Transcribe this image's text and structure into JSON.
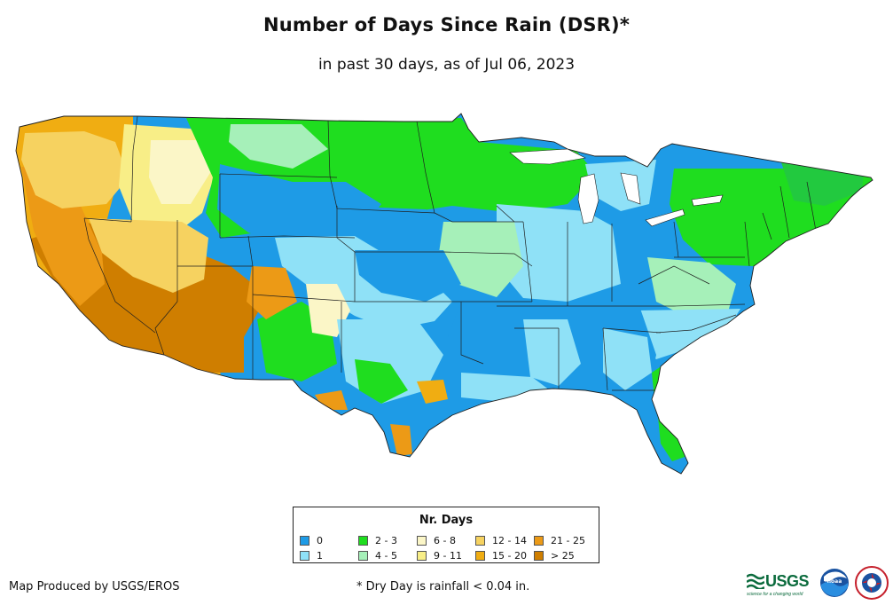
{
  "title": "Number of Days Since Rain (DSR)*",
  "subtitle": "in past 30 days, as of Jul 06, 2023",
  "legend": {
    "title": "Nr. Days",
    "items": [
      {
        "label": "0",
        "color": "#1e9be6"
      },
      {
        "label": "1",
        "color": "#8fe1f7"
      },
      {
        "label": "2 - 3",
        "color": "#1fdd1f"
      },
      {
        "label": "4 - 5",
        "color": "#a6f0b9"
      },
      {
        "label": "6 - 8",
        "color": "#fbf6c7"
      },
      {
        "label": "9 - 11",
        "color": "#f8ee87"
      },
      {
        "label": "12 - 14",
        "color": "#f6d260"
      },
      {
        "label": "15 - 20",
        "color": "#f0ad12"
      },
      {
        "label": "21 - 25",
        "color": "#ec9a16"
      },
      {
        "label": "> 25",
        "color": "#cf7e00"
      }
    ]
  },
  "producer": "Map Produced by USGS/EROS",
  "footnote": "* Dry Day is rainfall < 0.04 in.",
  "logos": {
    "usgs": {
      "word": "USGS",
      "tagline": "science for a changing world"
    },
    "noaa": {
      "icon": "noaa-logo"
    },
    "nws": {
      "icon": "national-weather-service-logo"
    }
  }
}
